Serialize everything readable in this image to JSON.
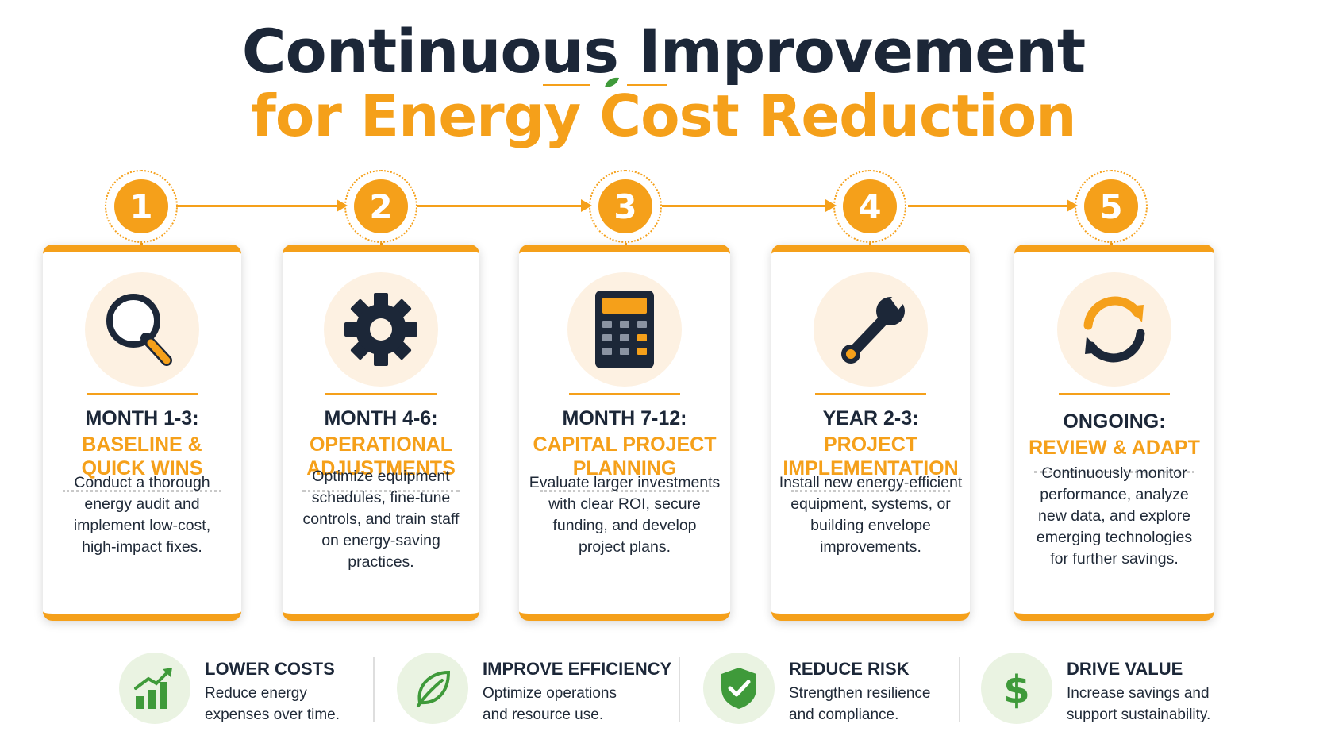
{
  "title": {
    "line1": "Continuous Improvement",
    "line2": "for Energy Cost Reduction"
  },
  "colors": {
    "accent": "#f5a01a",
    "navy": "#1c2738",
    "green": "#3f9a3a",
    "icon_bg": "#fdf1e2",
    "benefit_bg": "#eaf3e2"
  },
  "steps": [
    {
      "number": "1",
      "period": "MONTH 1-3:",
      "phase_line1": "BASELINE &",
      "phase_line2": "QUICK WINS",
      "icon": "magnifying-glass-icon",
      "description": [
        "Conduct a thorough",
        "energy audit and",
        "implement low-cost,",
        "high-impact fixes."
      ]
    },
    {
      "number": "2",
      "period": "MONTH 4-6:",
      "phase_line1": "OPERATIONAL",
      "phase_line2": "ADJUSTMENTS",
      "icon": "gear-icon",
      "description": [
        "Optimize equipment",
        "schedules, fine-tune",
        "controls, and train staff",
        "on energy-saving",
        "practices."
      ]
    },
    {
      "number": "3",
      "period": "MONTH 7-12:",
      "phase_line1": "CAPITAL PROJECT",
      "phase_line2": "PLANNING",
      "icon": "calculator-icon",
      "description": [
        "Evaluate larger investments",
        "with clear ROI, secure",
        "funding, and develop",
        "project plans."
      ]
    },
    {
      "number": "4",
      "period": "YEAR 2-3:",
      "phase_line1": "PROJECT",
      "phase_line2": "IMPLEMENTATION",
      "icon": "wrench-icon",
      "description": [
        "Install new energy-efficient",
        "equipment, systems, or",
        "building envelope",
        "improvements."
      ]
    },
    {
      "number": "5",
      "period": "ONGOING:",
      "phase_line1": "REVIEW & ADAPT",
      "phase_line2": "",
      "icon": "refresh-cycle-icon",
      "description": [
        "Continuously monitor",
        "performance, analyze",
        "new data, and explore",
        "emerging technologies",
        "for further savings."
      ]
    }
  ],
  "benefits": [
    {
      "title": "LOWER COSTS",
      "line1": "Reduce energy",
      "line2": "expenses over time.",
      "icon": "bar-chart-up-icon"
    },
    {
      "title": "IMPROVE EFFICIENCY",
      "line1": "Optimize operations",
      "line2": "and resource use.",
      "icon": "leaf-icon"
    },
    {
      "title": "REDUCE RISK",
      "line1": "Strengthen resilience",
      "line2": "and compliance.",
      "icon": "shield-check-icon"
    },
    {
      "title": "DRIVE VALUE",
      "line1": "Increase savings and",
      "line2": "support sustainability.",
      "icon": "dollar-icon"
    }
  ]
}
